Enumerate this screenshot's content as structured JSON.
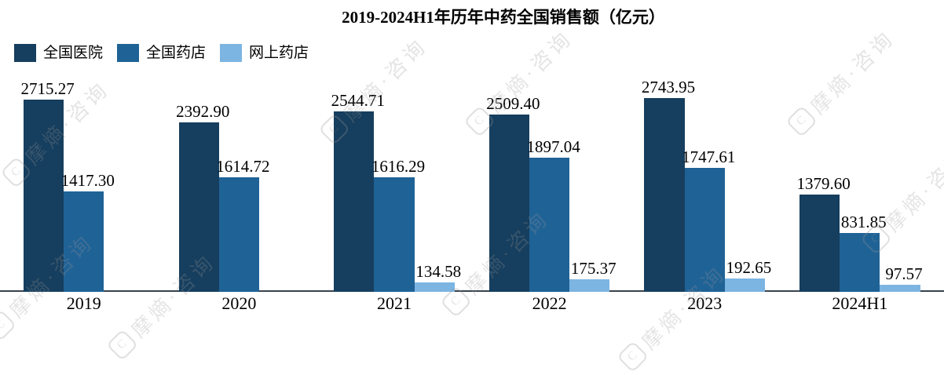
{
  "title": "2019-2024H1年历年中药全国销售额（亿元）",
  "watermark_text": "摩熵·咨询",
  "watermark_icon": "C",
  "colors": {
    "hospital": "#163e5e",
    "pharmacy": "#1f6296",
    "online": "#7cb5e2",
    "axis": "#39434d",
    "text": "#000000"
  },
  "chart_data": {
    "type": "bar",
    "title": "2019-2024H1年历年中药全国销售额（亿元）",
    "unit": "亿元",
    "categories": [
      "2019",
      "2020",
      "2021",
      "2022",
      "2023",
      "2024H1"
    ],
    "series": [
      {
        "name": "全国医院",
        "color": "#163e5e",
        "values": [
          2715.27,
          2392.9,
          2544.71,
          2509.4,
          2743.95,
          1379.6
        ],
        "labels": [
          "2715.27",
          "2392.90",
          "2544.71",
          "2509.40",
          "2743.95",
          "1379.60"
        ]
      },
      {
        "name": "全国药店",
        "color": "#1f6296",
        "values": [
          1417.3,
          1614.72,
          1616.29,
          1897.04,
          1747.61,
          831.85
        ],
        "labels": [
          "1417.30",
          "1614.72",
          "1616.29",
          "1897.04",
          "1747.61",
          "831.85"
        ]
      },
      {
        "name": "网上药店",
        "color": "#7cb5e2",
        "values": [
          null,
          null,
          134.58,
          175.37,
          192.65,
          97.57
        ],
        "labels": [
          null,
          null,
          "134.58",
          "175.37",
          "192.65",
          "97.57"
        ]
      }
    ],
    "ylim": [
      0,
      3000
    ],
    "grid": false,
    "y_axis_visible": false,
    "legend_position": "top-left",
    "value_labels": true
  }
}
